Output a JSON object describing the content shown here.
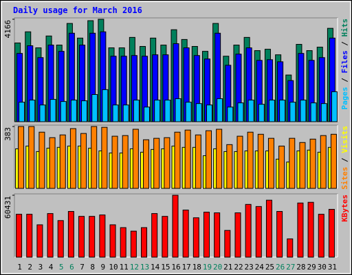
{
  "chart_data": [
    {
      "type": "bar",
      "title": "Daily usage for March 2016",
      "ylim": [
        0,
        4166
      ],
      "yticks": [
        4166
      ],
      "legend_separator": " / ",
      "series": [
        {
          "name": "Pages",
          "color": "#00c0ff",
          "values": [
            794,
            879,
            680,
            907,
            822,
            879,
            850,
            1105,
            1304,
            680,
            680,
            879,
            595,
            879,
            879,
            935,
            794,
            737,
            680,
            935,
            595,
            765,
            879,
            709,
            879,
            879,
            794,
            879,
            765,
            737,
            1219
          ]
        },
        {
          "name": "Files",
          "color": "#0000ff",
          "values": [
            2777,
            3089,
            2607,
            3117,
            2862,
            3599,
            3117,
            3599,
            3656,
            2664,
            2664,
            2692,
            2664,
            2721,
            2721,
            3174,
            3004,
            2692,
            2551,
            3599,
            2296,
            2749,
            3004,
            2494,
            2522,
            2437,
            1672,
            2777,
            2494,
            2607,
            3401
          ]
        },
        {
          "name": "Hits",
          "color": "#00805c",
          "values": [
            3202,
            3656,
            3004,
            3486,
            3117,
            3996,
            3401,
            4109,
            4166,
            3004,
            3004,
            3429,
            3061,
            3401,
            3117,
            3741,
            3344,
            3061,
            2862,
            3996,
            2664,
            3117,
            3429,
            2891,
            2947,
            2721,
            1899,
            3146,
            2891,
            3032,
            3798
          ]
        }
      ]
    },
    {
      "type": "bar",
      "ylim": [
        0,
        383
      ],
      "yticks": [
        383
      ],
      "legend_separator": " / ",
      "series": [
        {
          "name": "Sites",
          "color": "#ff8000",
          "values": [
            383,
            383,
            348,
            314,
            331,
            370,
            340,
            383,
            378,
            323,
            327,
            366,
            301,
            310,
            314,
            348,
            361,
            331,
            357,
            366,
            271,
            323,
            348,
            335,
            310,
            262,
            310,
            284,
            305,
            327,
            335
          ]
        },
        {
          "name": "Visits",
          "color": "#ffff00",
          "values": [
            245,
            262,
            228,
            249,
            254,
            262,
            262,
            249,
            232,
            219,
            219,
            245,
            224,
            241,
            245,
            262,
            254,
            254,
            202,
            245,
            228,
            228,
            232,
            232,
            232,
            181,
            163,
            232,
            237,
            224,
            254
          ]
        }
      ]
    },
    {
      "type": "bar",
      "ylim": [
        0,
        60431
      ],
      "yticks": [
        60431
      ],
      "series": [
        {
          "name": "KBytes",
          "color": "#ff0000",
          "values": [
            41889,
            41889,
            31588,
            42575,
            35708,
            44636,
            39829,
            39829,
            41202,
            31588,
            28841,
            25408,
            28841,
            42575,
            39829,
            60431,
            46009,
            38455,
            43949,
            43262,
            26095,
            43262,
            51503,
            49442,
            55623,
            44636,
            17854,
            52876,
            53563,
            41889,
            46696
          ]
        }
      ],
      "categories": [
        "1",
        "2",
        "3",
        "4",
        "5",
        "6",
        "7",
        "8",
        "9",
        "10",
        "11",
        "12",
        "13",
        "14",
        "15",
        "16",
        "17",
        "18",
        "19",
        "20",
        "21",
        "22",
        "23",
        "24",
        "25",
        "26",
        "27",
        "28",
        "29",
        "30",
        "31"
      ],
      "category_colors": [
        "#000000",
        "#000000",
        "#000000",
        "#000000",
        "#00805c",
        "#00805c",
        "#000000",
        "#000000",
        "#000000",
        "#000000",
        "#000000",
        "#00805c",
        "#00805c",
        "#000000",
        "#000000",
        "#000000",
        "#000000",
        "#000000",
        "#00805c",
        "#00805c",
        "#000000",
        "#000000",
        "#000000",
        "#000000",
        "#000000",
        "#00805c",
        "#00805c",
        "#000000",
        "#000000",
        "#000000",
        "#000000"
      ]
    }
  ]
}
